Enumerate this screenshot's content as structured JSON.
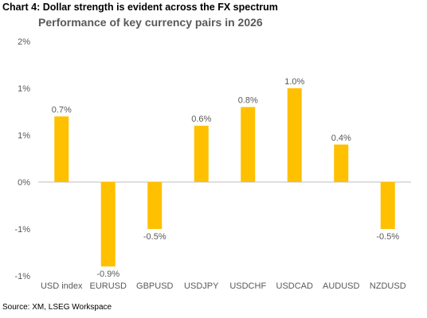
{
  "heading": "Chart 4: Dollar strength is evident across the FX spectrum",
  "source": "Source: XM, LSEG Workspace",
  "colors": {
    "bar": "#FFC000",
    "axis": "#595959",
    "baseline": "#BFBFBF"
  },
  "chart_data": {
    "type": "bar",
    "title": "Performance of key currency pairs in 2026",
    "xlabel": "",
    "ylabel": "",
    "categories": [
      "USD index",
      "EURUSD",
      "GBPUSD",
      "USDJPY",
      "USDCHF",
      "USDCAD",
      "AUDUSD",
      "NZDUSD"
    ],
    "values": [
      0.7,
      -0.9,
      -0.5,
      0.6,
      0.8,
      1.0,
      0.4,
      -0.5
    ],
    "data_labels": [
      "0.7%",
      "-0.9%",
      "-0.5%",
      "0.6%",
      "0.8%",
      "1.0%",
      "0.4%",
      "-0.5%"
    ],
    "ylim": [
      -1.0,
      1.5
    ],
    "ytick_values": [
      -1.0,
      -0.5,
      0,
      0.5,
      1.0,
      1.5
    ],
    "ytick_labels": [
      "-1%",
      "-1%",
      "0%",
      "1%",
      "1%",
      "2%"
    ],
    "grid": false,
    "legend": "none"
  }
}
